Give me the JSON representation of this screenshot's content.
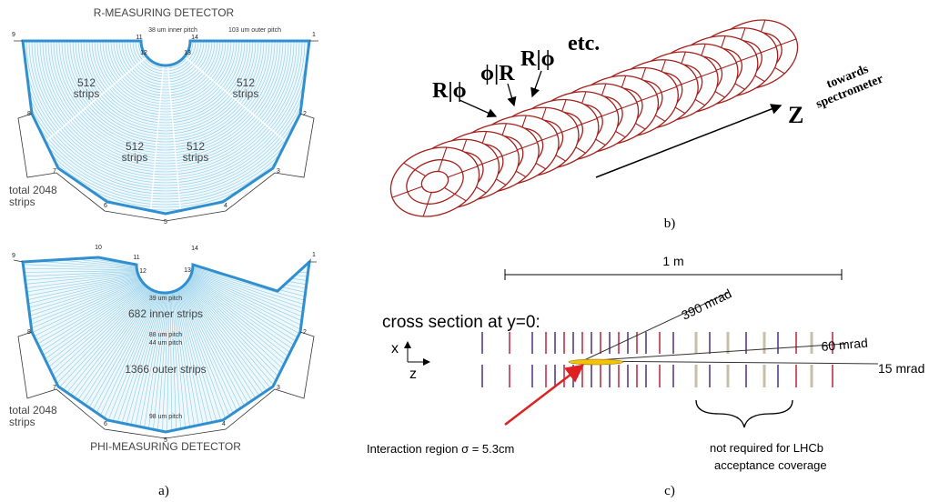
{
  "panel_a": {
    "label": "a)",
    "r_detector": {
      "title": "R-MEASURING DETECTOR",
      "inner_pitch": "38 um inner pitch",
      "outer_pitch": "103 um outer pitch",
      "corners": [
        "9",
        "11",
        "12",
        "13",
        "14",
        "1",
        "2",
        "3",
        "4",
        "5",
        "6",
        "7",
        "8"
      ],
      "sectors": [
        [
          "512",
          "strips"
        ],
        [
          "512",
          "strips"
        ],
        [
          "512",
          "strips"
        ],
        [
          "512",
          "strips"
        ]
      ],
      "total": [
        "total 2048",
        "strips"
      ]
    },
    "phi_detector": {
      "title": "PHI-MEASURING DETECTOR",
      "corners": [
        "9",
        "10",
        "11",
        "12",
        "13",
        "14",
        "1",
        "2",
        "3",
        "4",
        "5",
        "6",
        "7",
        "8"
      ],
      "inner_pitch": "39 um pitch",
      "inner_strips": "682 inner strips",
      "mid_pitch": [
        "88 um pitch",
        "44 um pitch"
      ],
      "outer_strips": "1366 outer strips",
      "outer_pitch": "98 um pitch",
      "total": [
        "total 2048",
        "strips"
      ]
    }
  },
  "panel_b": {
    "label": "b)",
    "labels": [
      "R|ϕ",
      "ϕ|R",
      "R|ϕ",
      "etc."
    ],
    "axis": "Z",
    "direction": [
      "towards",
      "spectrometer"
    ]
  },
  "panel_c": {
    "label": "c)",
    "scale": "1 m",
    "title": "cross section at y=0:",
    "axes": [
      "x",
      "z"
    ],
    "angles": [
      "390 mrad",
      "60 mrad",
      "15 mrad"
    ],
    "interaction": "Interaction region σ = 5.3cm",
    "note": [
      "not required for LHCb",
      "acceptance coverage"
    ]
  }
}
